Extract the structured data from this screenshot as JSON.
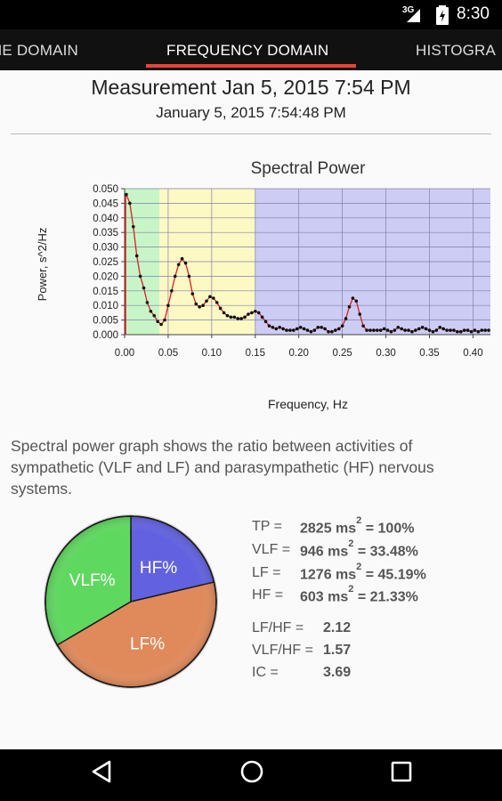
{
  "status_bar": {
    "network": "3G",
    "time": "8:30"
  },
  "tabs": [
    {
      "label": "ME DOMAIN"
    },
    {
      "label": "FREQUENCY DOMAIN"
    },
    {
      "label": "HISTOGRA"
    }
  ],
  "measurement": {
    "title": "Measurement Jan 5, 2015 7:54 PM",
    "datetime": "January 5, 2015 7:54:48 PM"
  },
  "chart_data": {
    "type": "line",
    "title": "Spectral Power",
    "xlabel": "Frequency, Hz",
    "ylabel": "Power, s^2/Hz",
    "xlim": [
      0,
      0.42
    ],
    "ylim": [
      0,
      0.05
    ],
    "x_ticks": [
      "0.00",
      "0.05",
      "0.10",
      "0.15",
      "0.20",
      "0.25",
      "0.30",
      "0.35",
      "0.40"
    ],
    "y_ticks": [
      "0.000",
      "0.005",
      "0.010",
      "0.015",
      "0.020",
      "0.025",
      "0.030",
      "0.035",
      "0.040",
      "0.045",
      "0.050"
    ],
    "grid": true,
    "bands": [
      {
        "name": "VLF",
        "from": 0.0,
        "to": 0.04,
        "color": "#c8f5c8"
      },
      {
        "name": "LF",
        "from": 0.04,
        "to": 0.15,
        "color": "#fdf9c4"
      },
      {
        "name": "HF",
        "from": 0.15,
        "to": 0.42,
        "color": "#ccccf4"
      }
    ],
    "series": [
      {
        "color": "#d62020",
        "x": [
          0.002,
          0.006,
          0.01,
          0.014,
          0.018,
          0.022,
          0.026,
          0.03,
          0.034,
          0.038,
          0.042,
          0.046,
          0.05,
          0.054,
          0.058,
          0.062,
          0.066,
          0.07,
          0.074,
          0.078,
          0.082,
          0.086,
          0.09,
          0.094,
          0.098,
          0.102,
          0.106,
          0.11,
          0.114,
          0.118,
          0.122,
          0.126,
          0.13,
          0.134,
          0.138,
          0.142,
          0.146,
          0.15,
          0.154,
          0.158,
          0.162,
          0.166,
          0.17,
          0.174,
          0.178,
          0.182,
          0.186,
          0.19,
          0.194,
          0.198,
          0.202,
          0.206,
          0.21,
          0.214,
          0.218,
          0.222,
          0.226,
          0.23,
          0.234,
          0.238,
          0.242,
          0.246,
          0.25,
          0.254,
          0.258,
          0.262,
          0.266,
          0.27,
          0.274,
          0.278,
          0.282,
          0.286,
          0.29,
          0.294,
          0.298,
          0.302,
          0.306,
          0.31,
          0.314,
          0.318,
          0.322,
          0.326,
          0.33,
          0.334,
          0.338,
          0.342,
          0.346,
          0.35,
          0.354,
          0.358,
          0.362,
          0.366,
          0.37,
          0.374,
          0.378,
          0.382,
          0.386,
          0.39,
          0.394,
          0.398,
          0.402,
          0.406,
          0.41,
          0.414,
          0.418
        ],
        "y": [
          0.048,
          0.045,
          0.037,
          0.027,
          0.02,
          0.016,
          0.011,
          0.008,
          0.0065,
          0.0045,
          0.0035,
          0.005,
          0.01,
          0.015,
          0.02,
          0.024,
          0.026,
          0.0245,
          0.02,
          0.014,
          0.0105,
          0.0095,
          0.01,
          0.0115,
          0.013,
          0.0125,
          0.011,
          0.009,
          0.0075,
          0.0065,
          0.006,
          0.006,
          0.0055,
          0.0055,
          0.006,
          0.007,
          0.0075,
          0.008,
          0.0075,
          0.006,
          0.0045,
          0.003,
          0.0025,
          0.002,
          0.0025,
          0.002,
          0.0015,
          0.0015,
          0.0015,
          0.002,
          0.0025,
          0.002,
          0.0015,
          0.001,
          0.0015,
          0.0025,
          0.0025,
          0.002,
          0.001,
          0.001,
          0.0015,
          0.002,
          0.003,
          0.0055,
          0.0095,
          0.0125,
          0.0115,
          0.007,
          0.003,
          0.0015,
          0.0015,
          0.0015,
          0.0015,
          0.0015,
          0.002,
          0.0015,
          0.001,
          0.0015,
          0.0025,
          0.002,
          0.0015,
          0.0015,
          0.001,
          0.0015,
          0.002,
          0.0025,
          0.002,
          0.0015,
          0.001,
          0.0015,
          0.0025,
          0.002,
          0.0015,
          0.0015,
          0.0015,
          0.001,
          0.001,
          0.0015,
          0.0015,
          0.001,
          0.0015,
          0.001,
          0.0015,
          0.0015,
          0.0015
        ]
      }
    ]
  },
  "description": "Spectral power graph shows the ratio between activities of sympathetic (VLF and LF) and parasympathetic (HF) nervous systems.",
  "pie": {
    "slices": [
      {
        "label": "HF%",
        "percent": 21.33,
        "color": "#6262e0"
      },
      {
        "label": "LF%",
        "percent": 45.19,
        "color": "#e08a5c"
      },
      {
        "label": "VLF%",
        "percent": 33.48,
        "color": "#5fd85f"
      }
    ]
  },
  "stats": {
    "tp": {
      "label": "TP =",
      "value": "2825 ms",
      "sup": "2",
      "suffix": " = 100%"
    },
    "vlf": {
      "label": "VLF =",
      "value": "946 ms",
      "sup": "2",
      "suffix": " = 33.48%"
    },
    "lf": {
      "label": "LF =",
      "value": "1276 ms",
      "sup": "2",
      "suffix": " = 45.19%"
    },
    "hf": {
      "label": "HF =",
      "value": "603 ms",
      "sup": "2",
      "suffix": " = 21.33%"
    },
    "lf_hf": {
      "label": "LF/HF =",
      "value": "2.12"
    },
    "vlf_hf": {
      "label": "VLF/HF =",
      "value": "1.57"
    },
    "ic": {
      "label": "IC =",
      "value": "3.69"
    }
  },
  "nav": {
    "back_icon": "back-triangle-icon",
    "home_icon": "home-circle-icon",
    "recents_icon": "recents-square-icon"
  }
}
